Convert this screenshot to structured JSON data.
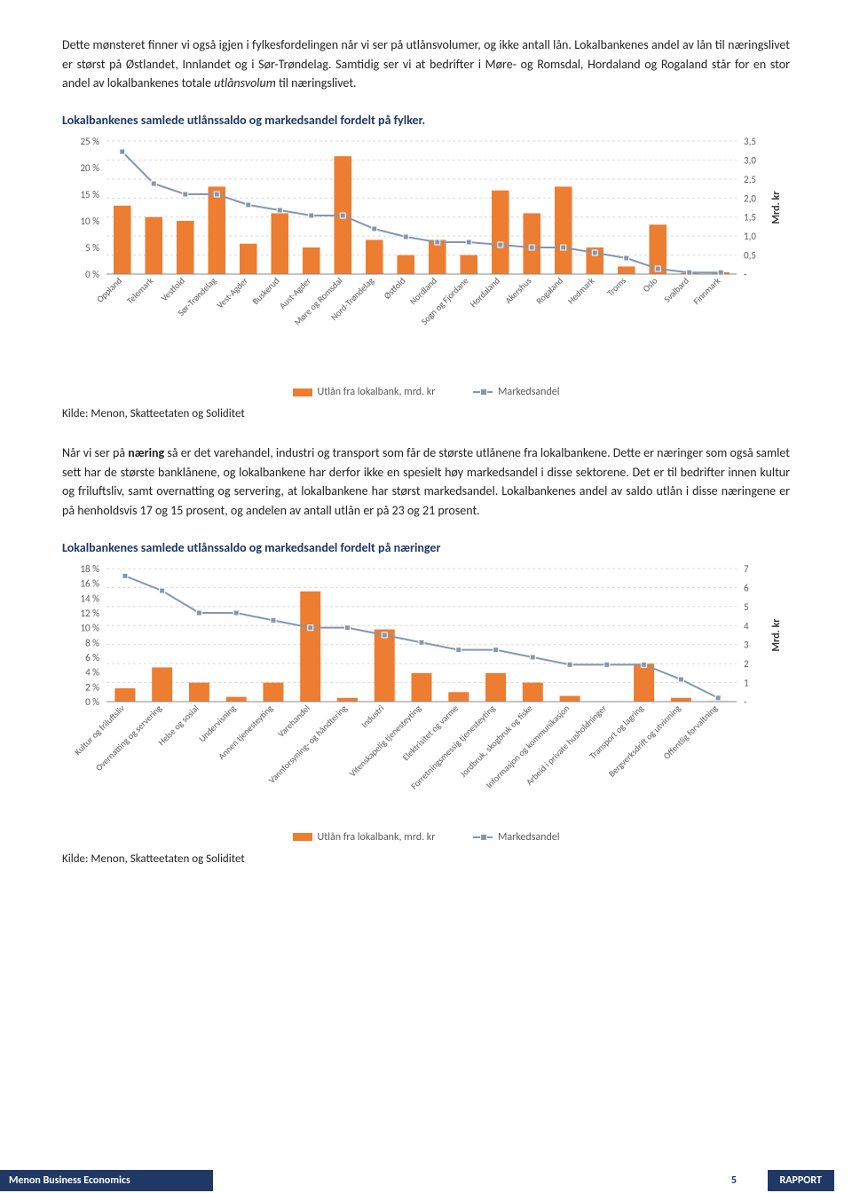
{
  "para1_a": "Dette mønsteret finner vi også igjen i fylkesfordelingen når vi ser på utlånsvolumer, og ikke antall lån. Lokalbankenes andel av lån til næringslivet er størst på Østlandet, Innlandet og i Sør-Trøndelag. Samtidig ser vi at bedrifter i Møre- og Romsdal, Hordaland og Rogaland står for en stor andel av lokalbankenes totale ",
  "para1_italic": "utlånsvolum",
  "para1_b": " til næringslivet.",
  "chart1_title": "Lokalbankenes samlede utlånssaldo og markedsandel fordelt på fylker.",
  "source1": "Kilde: Menon, Skatteetaten og Soliditet",
  "para2_a": "Når vi ser på ",
  "para2_bold": "næring",
  "para2_b": " så er det varehandel, industri og transport som får de største utlånene fra lokalbankene. Dette er næringer som også samlet sett har de største banklånene, og lokalbankene har derfor ikke en spesielt høy markedsandel i disse sektorene. Det er til bedrifter innen kultur og friluftsliv, samt overnatting og servering, at lokalbankene har størst markedsandel. Lokalbankenes andel av saldo utlån i disse næringene er på henholdsvis 17 og 15 prosent, og andelen av antall utlån er på 23 og 21 prosent.",
  "chart2_title": "Lokalbankenes samlede utlånssaldo og markedsandel fordelt på næringer",
  "source2": "Kilde: Menon, Skatteetaten og Soliditet",
  "legend_bar": "Utlån fra lokalbank, mrd. kr",
  "legend_line": "Markedsandel",
  "footer_left": "Menon Business Economics",
  "footer_page": "5",
  "footer_right": "RAPPORT",
  "chart1": {
    "type": "bar+line",
    "bar_color": "#ed7d31",
    "line_color": "#8497b0",
    "marker_color": "#8497b0",
    "grid_color": "#d9d9d9",
    "y_left_label_suffix": " %",
    "y_left_ticks": [
      0,
      5,
      10,
      15,
      20,
      25
    ],
    "y_left_max": 25,
    "y_right_ticks": [
      "-",
      "0,5",
      "1,0",
      "1,5",
      "2,0",
      "2,5",
      "3,0",
      "3,5"
    ],
    "y_right_max": 3.5,
    "y_right_title": "Mrd. kr",
    "categories": [
      "Oppland",
      "Telemark",
      "Vestfold",
      "Sør-Trøndelag",
      "Vest-Agder",
      "Buskerud",
      "Aust-Agder",
      "Møre og Romsdal",
      "Nord-Trøndelag",
      "Østfold",
      "Nordland",
      "Sogn og Fjordane",
      "Hordaland",
      "Akershus",
      "Rogaland",
      "Hedmark",
      "Troms",
      "Oslo",
      "Svalbard",
      "Finnmark"
    ],
    "bar_values": [
      1.8,
      1.5,
      1.4,
      2.3,
      0.8,
      1.6,
      0.7,
      3.1,
      0.9,
      0.5,
      0.9,
      0.5,
      2.2,
      1.6,
      2.3,
      0.7,
      0.2,
      1.3,
      0.03,
      0.05
    ],
    "line_values": [
      23,
      17,
      15,
      15,
      13,
      12,
      11,
      11,
      8.5,
      7,
      6,
      6,
      5.5,
      5,
      5,
      4,
      3,
      1,
      0.3,
      0.3
    ]
  },
  "chart2": {
    "type": "bar+line",
    "bar_color": "#ed7d31",
    "line_color": "#8497b0",
    "marker_color": "#8497b0",
    "grid_color": "#d9d9d9",
    "y_left_label_suffix": " %",
    "y_left_ticks": [
      0,
      2,
      4,
      6,
      8,
      10,
      12,
      14,
      16,
      18
    ],
    "y_left_max": 18,
    "y_right_ticks": [
      "-",
      "1",
      "2",
      "3",
      "4",
      "5",
      "6",
      "7"
    ],
    "y_right_max": 7,
    "y_right_title": "Mrd. kr",
    "categories": [
      "Kultur og friluftsliv",
      "Overnatting og servering",
      "Helse og sosial",
      "Undervisning",
      "Annen tjenesteyting",
      "Varehandel",
      "Vannforsyning- og håndtering",
      "Industri",
      "Vitenskapelig tjenesteyting",
      "Elektrisitet og varme",
      "Forretningsmessig tjenesteyting",
      "Jordbruk, skogbruk og fiske",
      "Informasjon og kommunikasjon",
      "Arbeid i private husholdninger",
      "Transport og lagring",
      "Bergverksdrift og utvinning",
      "Offentlig forvaltning"
    ],
    "bar_values": [
      0.7,
      1.8,
      1.0,
      0.25,
      1.0,
      5.8,
      0.2,
      3.8,
      1.5,
      0.5,
      1.5,
      1.0,
      0.3,
      0.02,
      2.0,
      0.2,
      0.03
    ],
    "line_values": [
      17,
      15,
      12,
      12,
      11,
      10,
      10,
      9,
      8,
      7,
      7,
      6,
      5,
      5,
      5,
      3,
      0.5
    ]
  }
}
